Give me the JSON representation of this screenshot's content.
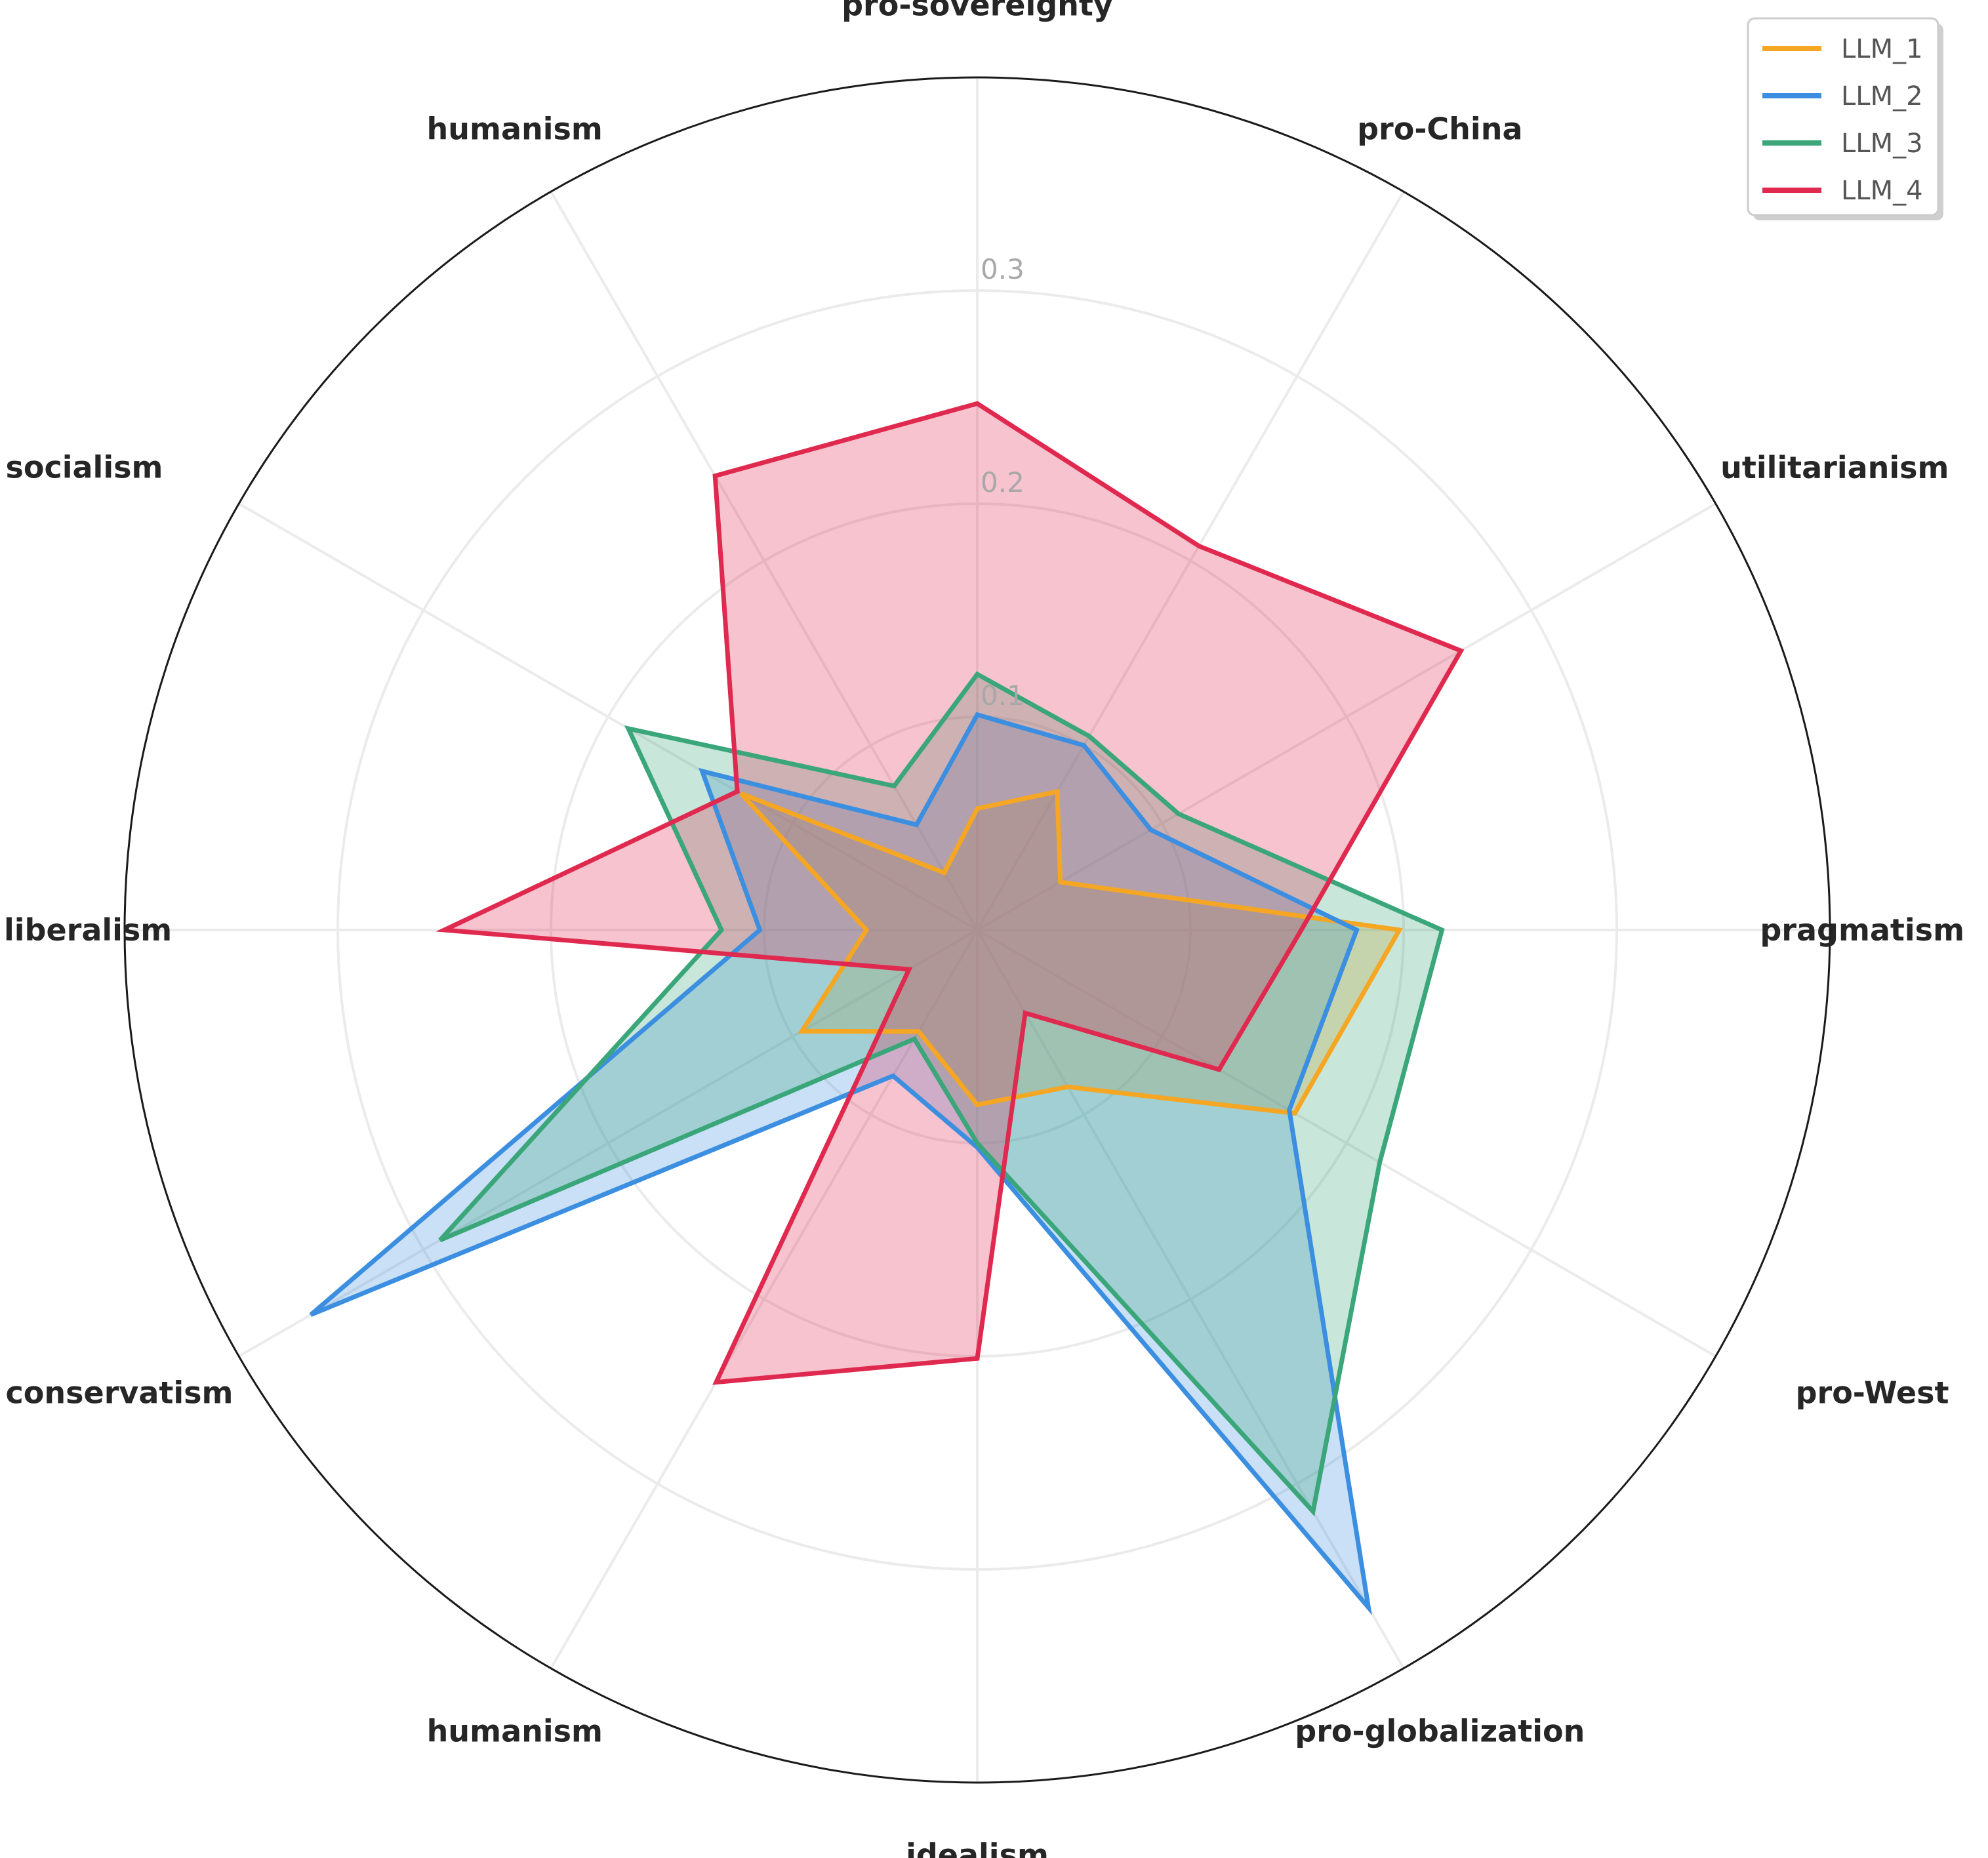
{
  "chart_data": {
    "type": "radar",
    "title": "",
    "axes": [
      "pro-sovereignty",
      "pro-China",
      "utilitarianism",
      "pragmatism",
      "pro-West",
      "pro-globalization",
      "idealism",
      "humanism",
      "conservatism",
      "liberalism",
      "socialism",
      "humanism"
    ],
    "radial_ticks": [
      0.1,
      0.2,
      0.3
    ],
    "radial_range": [
      0,
      0.4
    ],
    "grid": true,
    "legend_position": "top-right",
    "series": [
      {
        "name": "LLM_1",
        "color": "#f5a623",
        "values": [
          0.057,
          0.075,
          0.045,
          0.198,
          0.172,
          0.085,
          0.082,
          0.055,
          0.095,
          0.052,
          0.128,
          0.031
        ]
      },
      {
        "name": "LLM_2",
        "color": "#3c8fe0",
        "values": [
          0.101,
          0.1,
          0.094,
          0.178,
          0.169,
          0.367,
          0.102,
          0.079,
          0.361,
          0.102,
          0.149,
          0.057
        ]
      },
      {
        "name": "LLM_3",
        "color": "#3aa67a",
        "values": [
          0.12,
          0.105,
          0.109,
          0.218,
          0.218,
          0.315,
          0.1,
          0.059,
          0.291,
          0.12,
          0.189,
          0.078
        ]
      },
      {
        "name": "LLM_4",
        "color": "#e0294f",
        "values": [
          0.247,
          0.208,
          0.262,
          0.152,
          0.131,
          0.045,
          0.201,
          0.245,
          0.037,
          0.25,
          0.13,
          0.246
        ]
      }
    ]
  }
}
